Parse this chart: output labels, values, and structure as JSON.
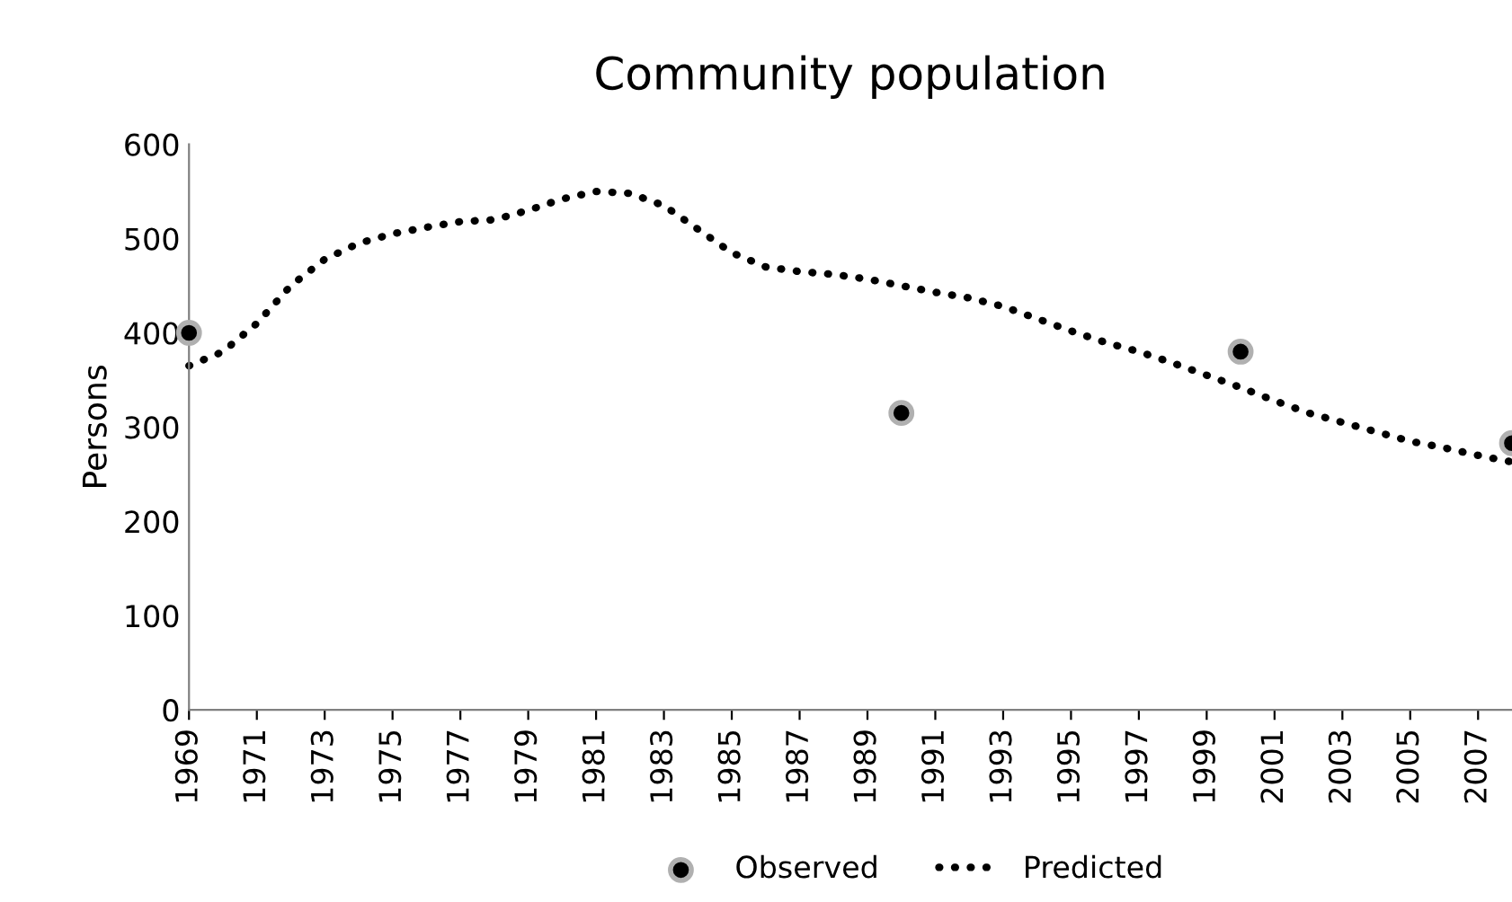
{
  "chart_data": {
    "type": "line",
    "title": "Community population",
    "ylabel": "Persons",
    "x": [
      1969,
      1970,
      1971,
      1972,
      1973,
      1974,
      1975,
      1976,
      1977,
      1978,
      1979,
      1980,
      1981,
      1982,
      1983,
      1984,
      1985,
      1986,
      1987,
      1988,
      1989,
      1990,
      1991,
      1992,
      1993,
      1994,
      1995,
      1996,
      1997,
      1998,
      1999,
      2000,
      2001,
      2002,
      2003,
      2004,
      2005,
      2006,
      2007,
      2008
    ],
    "series": [
      {
        "name": "Observed",
        "type": "scatter",
        "color": "#000000",
        "marker": "circle",
        "x": [
          1969,
          1990,
          2000,
          2008
        ],
        "values": [
          400,
          315,
          380,
          283
        ]
      },
      {
        "name": "Predicted",
        "color": "#000000",
        "line_style": "dotted",
        "values": [
          365,
          380,
          410,
          450,
          478,
          495,
          505,
          512,
          518,
          520,
          530,
          542,
          550,
          548,
          535,
          510,
          485,
          470,
          465,
          462,
          457,
          450,
          443,
          437,
          428,
          415,
          402,
          390,
          380,
          368,
          355,
          342,
          328,
          315,
          305,
          295,
          285,
          278,
          270,
          263
        ]
      }
    ],
    "xlim": [
      1969,
      2008
    ],
    "xticks": [
      1969,
      1971,
      1973,
      1975,
      1977,
      1979,
      1981,
      1983,
      1985,
      1987,
      1989,
      1991,
      1993,
      1995,
      1997,
      1999,
      2001,
      2003,
      2005,
      2007
    ],
    "ylim": [
      0,
      600
    ],
    "yticks": [
      0,
      100,
      200,
      300,
      400,
      500,
      600
    ],
    "grid": false,
    "legend": "bottom"
  }
}
